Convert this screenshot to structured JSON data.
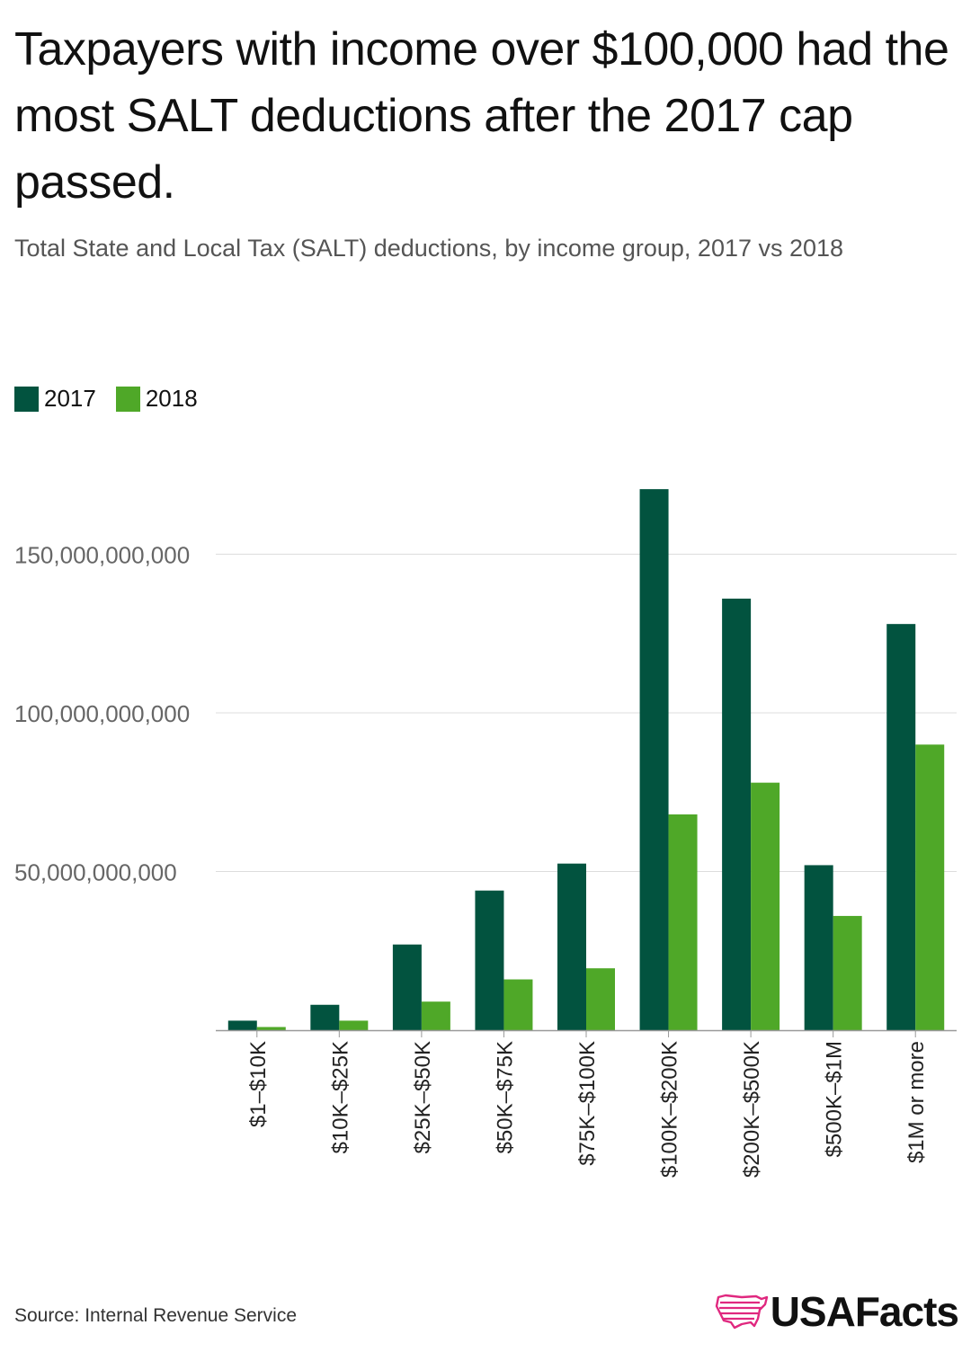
{
  "title": "Taxpayers with income over $100,000 had the most SALT deductions after the 2017 cap passed.",
  "subtitle": "Total State and Local Tax (SALT) deductions, by income group, 2017 vs 2018",
  "source": "Source: Internal Revenue Service",
  "brand": {
    "name": "USAFacts",
    "logo_icon": "usa-map-flag-icon",
    "logo_color": "#e0287f"
  },
  "colors": {
    "2017": "#02533f",
    "2018": "#4fa828",
    "grid": "#dddddd",
    "axis": "#999999",
    "tick_text": "#666666"
  },
  "chart_data": {
    "type": "bar",
    "title": "Total State and Local Tax (SALT) deductions, by income group, 2017 vs 2018",
    "xlabel": "",
    "ylabel": "",
    "ylim": [
      0,
      175000000000
    ],
    "yticks": [
      {
        "value": 50000000000,
        "label": "50,000,000,000"
      },
      {
        "value": 100000000000,
        "label": "100,000,000,000"
      },
      {
        "value": 150000000000,
        "label": "150,000,000,000"
      }
    ],
    "grid": true,
    "legend_position": "top-left",
    "categories": [
      "$1–$10K",
      "$10K–$25K",
      "$25K–$50K",
      "$50K–$75K",
      "$75K–$100K",
      "$100K–$200K",
      "$200K–$500K",
      "$500K–$1M",
      "$1M or more"
    ],
    "series": [
      {
        "name": "2017",
        "values": [
          3000000000,
          8000000000,
          27000000000,
          44000000000,
          52500000000,
          170500000000,
          136000000000,
          52000000000,
          128000000000
        ]
      },
      {
        "name": "2018",
        "values": [
          1000000000,
          3000000000,
          9000000000,
          16000000000,
          19500000000,
          68000000000,
          78000000000,
          36000000000,
          90000000000
        ]
      }
    ]
  }
}
